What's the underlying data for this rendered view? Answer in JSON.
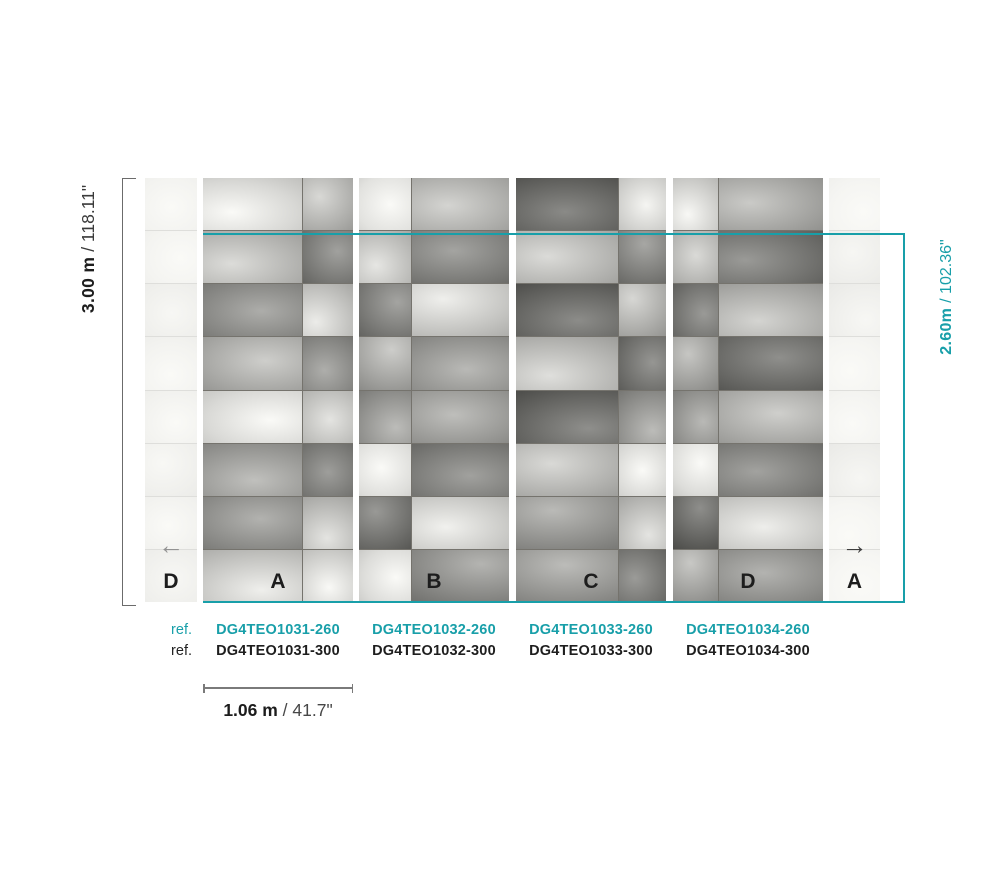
{
  "colors": {
    "accent_teal": "#189fa9"
  },
  "dimensions": {
    "height_full": {
      "bold": "3.00 m",
      "rest": "/ 118.11\""
    },
    "height_trim": {
      "bold": "2.60m",
      "rest": "/ 102.36\""
    },
    "panel_width": {
      "bold": "1.06 m",
      "rest": "/ 41.7\""
    }
  },
  "edges": {
    "left": {
      "label": "D",
      "arrow": "←"
    },
    "right": {
      "label": "A",
      "arrow": "→"
    }
  },
  "panels": [
    {
      "label": "A",
      "ref_260": "DG4TEO1031-260",
      "ref_300": "DG4TEO1031-300"
    },
    {
      "label": "B",
      "ref_260": "DG4TEO1032-260",
      "ref_300": "DG4TEO1032-300"
    },
    {
      "label": "C",
      "ref_260": "DG4TEO1033-260",
      "ref_300": "DG4TEO1033-300"
    },
    {
      "label": "D",
      "ref_260": "DG4TEO1034-260",
      "ref_300": "DG4TEO1034-300"
    }
  ],
  "ref_labels": {
    "row_260": "ref.",
    "row_300": "ref."
  }
}
